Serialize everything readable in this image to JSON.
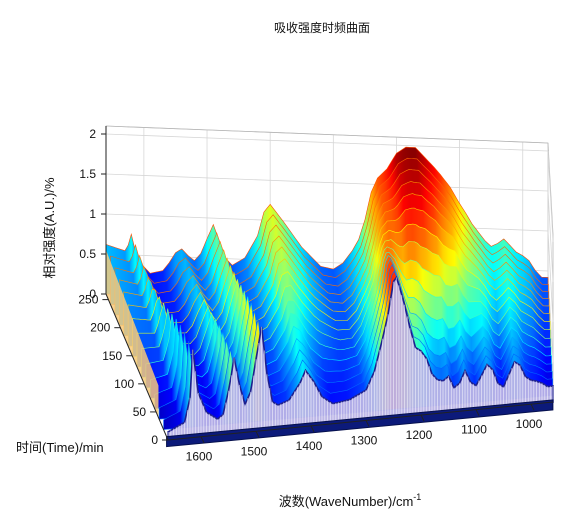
{
  "chart_data": {
    "type": "surface3d",
    "title": "吸收强度时频曲面",
    "xlabel": "波数(WaveNumber)/cm",
    "xlabel_sup": "-1",
    "ylabel": "时间(Time)/min",
    "zlabel": "相对强度(A.U.)/%",
    "x_ticks": [
      1600,
      1500,
      1400,
      1300,
      1200,
      1100,
      1000
    ],
    "y_ticks": [
      0,
      50,
      100,
      150,
      200,
      250
    ],
    "z_ticks": [
      "0",
      "0.5",
      "1",
      "1.5",
      "2"
    ],
    "xlim": [
      1660,
      960
    ],
    "ylim": [
      0,
      260
    ],
    "zlim": [
      0,
      2.1
    ],
    "grid": true,
    "colormap": "jet",
    "spectrum_final": {
      "wavenumber": [
        1660,
        1630,
        1625,
        1620,
        1615,
        1605,
        1590,
        1570,
        1560,
        1550,
        1540,
        1530,
        1520,
        1510,
        1500,
        1490,
        1480,
        1470,
        1460,
        1440,
        1420,
        1410,
        1400,
        1380,
        1350,
        1320,
        1300,
        1285,
        1270,
        1260,
        1250,
        1240,
        1230,
        1215,
        1200,
        1185,
        1170,
        1160,
        1150,
        1140,
        1130,
        1115,
        1100,
        1090,
        1080,
        1070,
        1060,
        1050,
        1040,
        1030,
        1020,
        1010,
        1000,
        990,
        980,
        970
      ],
      "absorbance": [
        0.62,
        0.55,
        0.62,
        0.76,
        0.6,
        0.4,
        0.28,
        0.32,
        0.42,
        0.55,
        0.6,
        0.52,
        0.46,
        0.55,
        0.74,
        0.92,
        0.7,
        0.5,
        0.42,
        0.52,
        0.8,
        1.1,
        1.2,
        1.0,
        0.68,
        0.45,
        0.42,
        0.5,
        0.66,
        0.8,
        1.05,
        1.4,
        1.58,
        1.7,
        1.9,
        1.98,
        1.98,
        1.9,
        1.82,
        1.74,
        1.65,
        1.5,
        1.3,
        1.18,
        1.05,
        0.95,
        0.85,
        0.78,
        0.82,
        0.88,
        0.8,
        0.72,
        0.68,
        0.62,
        0.5,
        0.42
      ]
    },
    "spectrum_initial": {
      "wavenumber": [
        1660,
        1630,
        1620,
        1615,
        1605,
        1590,
        1570,
        1560,
        1548,
        1540,
        1530,
        1520,
        1510,
        1500,
        1490,
        1480,
        1470,
        1460,
        1440,
        1420,
        1410,
        1395,
        1380,
        1360,
        1330,
        1300,
        1285,
        1270,
        1260,
        1250,
        1245,
        1240,
        1230,
        1220,
        1210,
        1200,
        1190,
        1180,
        1170,
        1160,
        1150,
        1140,
        1130,
        1120,
        1110,
        1100,
        1090,
        1080,
        1070,
        1060,
        1050,
        1040,
        1030,
        1020,
        1010,
        1000,
        990,
        980,
        970
      ],
      "absorbance": [
        0.1,
        0.2,
        0.5,
        1.1,
        0.55,
        0.3,
        0.2,
        0.25,
        0.6,
        0.95,
        0.6,
        0.35,
        0.5,
        0.9,
        1.3,
        0.7,
        0.35,
        0.3,
        0.35,
        0.55,
        0.7,
        0.55,
        0.35,
        0.25,
        0.28,
        0.38,
        0.6,
        1.0,
        1.3,
        1.7,
        1.75,
        1.65,
        1.4,
        1.1,
        0.85,
        0.8,
        0.7,
        0.5,
        0.42,
        0.4,
        0.45,
        0.3,
        0.35,
        0.5,
        0.35,
        0.3,
        0.42,
        0.55,
        0.48,
        0.3,
        0.25,
        0.4,
        0.55,
        0.5,
        0.35,
        0.3,
        0.28,
        0.25,
        0.2
      ]
    },
    "time_scale": [
      0,
      0.04,
      0.08,
      0.15,
      0.25,
      0.38,
      0.5,
      0.62,
      0.72,
      0.8,
      0.86,
      0.9,
      0.94,
      0.97,
      1.0
    ]
  }
}
